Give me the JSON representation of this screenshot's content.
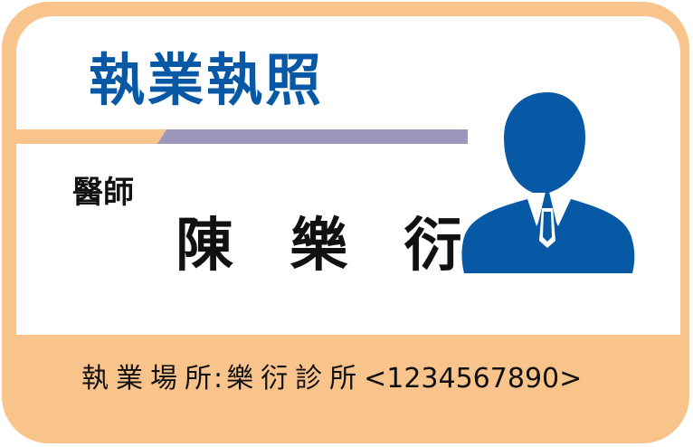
{
  "card": {
    "title": "執業執照",
    "profession": "醫師",
    "name": "陳 樂 衍",
    "workplace_label": "執業場所",
    "workplace_separator": ":",
    "workplace_name": "樂衍診所",
    "license_number": "<1234567890>",
    "avatar_icon": "person-silhouette-icon"
  },
  "colors": {
    "frame": "#f9c48c",
    "title": "#0758a5",
    "stripe_orange": "#f9c48c",
    "stripe_purple": "#9b97bc",
    "avatar": "#0758a5"
  }
}
